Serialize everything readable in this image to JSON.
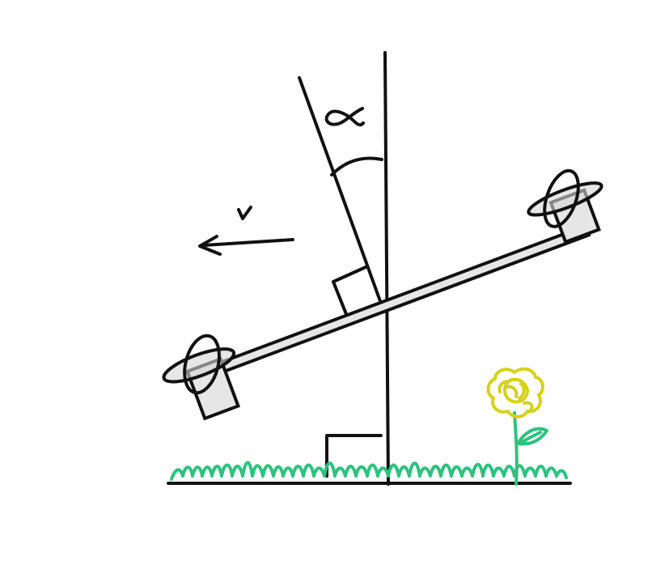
{
  "diagram": {
    "labels": {
      "angle": "α",
      "velocity": "v"
    },
    "colors": {
      "ink": "#111111",
      "drone_fill": "#e6e6e6",
      "grass": "#2ec27e",
      "flower_petals": "#d6d11b",
      "flower_stem": "#2ec27e"
    },
    "icons": {
      "velocity_arrow": "arrow-left-icon",
      "right_angle": "right-angle-icon",
      "rotor": "propeller-icon",
      "flower": "flower-icon"
    }
  }
}
